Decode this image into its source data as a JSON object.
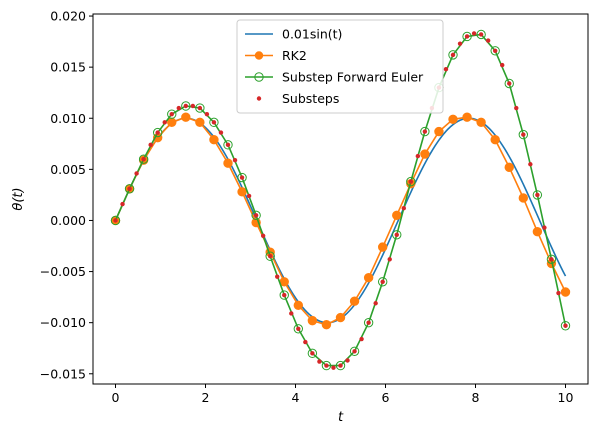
{
  "chart_data": {
    "type": "line",
    "title": "",
    "xlabel": "t",
    "ylabel": "θ(t)",
    "xlim": [
      -0.5,
      10.5
    ],
    "ylim": [
      -0.016,
      0.0202
    ],
    "x_ticks": [
      0,
      2,
      4,
      6,
      8,
      10
    ],
    "x_tick_labels": [
      "0",
      "2",
      "4",
      "6",
      "8",
      "10"
    ],
    "y_ticks": [
      -0.015,
      -0.01,
      -0.005,
      0.0,
      0.005,
      0.01,
      0.015,
      0.02
    ],
    "y_tick_labels": [
      "−0.015",
      "−0.010",
      "−0.005",
      "0.000",
      "0.005",
      "0.010",
      "0.015",
      "0.020"
    ],
    "grid": false,
    "legend_position": "top-center",
    "series": [
      {
        "name": "0.01sin(t)",
        "kind": "line",
        "color": "#1f77b4",
        "function": "0.01*sin(t)",
        "x_range": [
          0,
          10
        ]
      },
      {
        "name": "RK2",
        "kind": "line-marker",
        "color": "#ff7f0e",
        "x": [
          0.0,
          0.3125,
          0.625,
          0.9375,
          1.25,
          1.5625,
          1.875,
          2.1875,
          2.5,
          2.8125,
          3.125,
          3.4375,
          3.75,
          4.0625,
          4.375,
          4.6875,
          5.0,
          5.3125,
          5.625,
          5.9375,
          6.25,
          6.5625,
          6.875,
          7.1875,
          7.5,
          7.8125,
          8.125,
          8.4375,
          8.75,
          9.0625,
          9.375,
          9.6875,
          10.0
        ],
        "y": [
          0.0,
          0.0031,
          0.0059,
          0.0081,
          0.0096,
          0.0101,
          0.0096,
          0.0079,
          0.0056,
          0.0028,
          -0.0002,
          -0.0031,
          -0.006,
          -0.0083,
          -0.0098,
          -0.0102,
          -0.0095,
          -0.0079,
          -0.0056,
          -0.0026,
          0.0005,
          0.0036,
          0.0065,
          0.0087,
          0.0099,
          0.0101,
          0.0096,
          0.0079,
          0.0052,
          0.0022,
          -0.0011,
          -0.0042,
          -0.007
        ]
      },
      {
        "name": "Substep Forward Euler",
        "kind": "line-hollow-marker",
        "color": "#2ca02c",
        "x": [
          0.0,
          0.3125,
          0.625,
          0.9375,
          1.25,
          1.5625,
          1.875,
          2.1875,
          2.5,
          2.8125,
          3.125,
          3.4375,
          3.75,
          4.0625,
          4.375,
          4.6875,
          5.0,
          5.3125,
          5.625,
          5.9375,
          6.25,
          6.5625,
          6.875,
          7.1875,
          7.5,
          7.8125,
          8.125,
          8.4375,
          8.75,
          9.0625,
          9.375,
          9.6875,
          10.0
        ],
        "y": [
          0.0,
          0.0031,
          0.006,
          0.0086,
          0.0104,
          0.0112,
          0.011,
          0.0096,
          0.0074,
          0.0042,
          0.0005,
          -0.0035,
          -0.0073,
          -0.0106,
          -0.013,
          -0.0142,
          -0.0142,
          -0.0128,
          -0.01,
          -0.006,
          -0.0014,
          0.0038,
          0.0087,
          0.013,
          0.0162,
          0.018,
          0.0182,
          0.0166,
          0.0134,
          0.0084,
          0.0025,
          -0.0038,
          -0.0103
        ]
      },
      {
        "name": "Substeps",
        "kind": "scatter",
        "color": "#d62728",
        "x": [
          0.0,
          0.15625,
          0.3125,
          0.46875,
          0.625,
          0.78125,
          0.9375,
          1.09375,
          1.25,
          1.40625,
          1.5625,
          1.71875,
          1.875,
          2.03125,
          2.1875,
          2.34375,
          2.5,
          2.65625,
          2.8125,
          2.96875,
          3.125,
          3.28125,
          3.4375,
          3.59375,
          3.75,
          3.90625,
          4.0625,
          4.21875,
          4.375,
          4.53125,
          4.6875,
          4.84375,
          5.0,
          5.15625,
          5.3125,
          5.46875,
          5.625,
          5.78125,
          5.9375,
          6.09375,
          6.25,
          6.40625,
          6.5625,
          6.71875,
          6.875,
          7.03125,
          7.1875,
          7.34375,
          7.5,
          7.65625,
          7.8125,
          7.96875,
          8.125,
          8.28125,
          8.4375,
          8.59375,
          8.75,
          8.90625,
          9.0625,
          9.21875,
          9.375,
          9.53125,
          9.6875,
          9.84375,
          10.0
        ],
        "y": [
          0.0,
          0.0016,
          0.0031,
          0.0046,
          0.006,
          0.0074,
          0.0086,
          0.0096,
          0.0104,
          0.011,
          0.0112,
          0.0112,
          0.011,
          0.0104,
          0.0096,
          0.0086,
          0.0074,
          0.0059,
          0.0042,
          0.0024,
          0.0005,
          -0.0015,
          -0.0035,
          -0.0055,
          -0.0073,
          -0.0091,
          -0.0106,
          -0.0119,
          -0.013,
          -0.0138,
          -0.0142,
          -0.0144,
          -0.0142,
          -0.0137,
          -0.0128,
          -0.0116,
          -0.01,
          -0.0081,
          -0.006,
          -0.0038,
          -0.0014,
          0.0012,
          0.0038,
          0.0063,
          0.0087,
          0.011,
          0.013,
          0.0148,
          0.0162,
          0.0173,
          0.018,
          0.0183,
          0.0182,
          0.0176,
          0.0166,
          0.0152,
          0.0134,
          0.011,
          0.0084,
          0.0055,
          0.0025,
          -0.0007,
          -0.0038,
          -0.0071,
          -0.0103
        ]
      }
    ]
  }
}
